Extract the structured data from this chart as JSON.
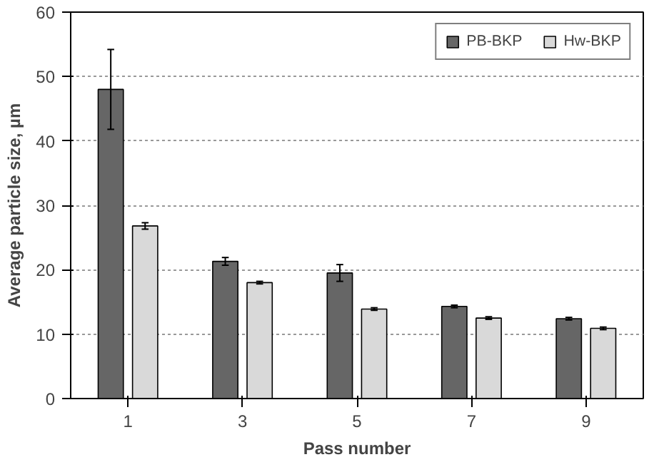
{
  "chart_data": {
    "type": "bar",
    "xlabel": "Pass number",
    "ylabel": "Average particle size, µm",
    "categories": [
      "1",
      "3",
      "5",
      "7",
      "9"
    ],
    "series": [
      {
        "name": "PB-BKP",
        "color": "#666666",
        "values": [
          48.0,
          21.3,
          19.5,
          14.3,
          12.4
        ],
        "errors": [
          6.2,
          0.6,
          1.3,
          0.2,
          0.2
        ]
      },
      {
        "name": "Hw-BKP",
        "color": "#d9d9d9",
        "values": [
          26.8,
          18.0,
          13.9,
          12.5,
          10.9
        ],
        "errors": [
          0.5,
          0.2,
          0.2,
          0.2,
          0.2
        ]
      }
    ],
    "ylim": [
      0,
      60
    ],
    "yticks": [
      0,
      10,
      20,
      30,
      40,
      50,
      60
    ],
    "grid": "y",
    "legend": "top right"
  }
}
